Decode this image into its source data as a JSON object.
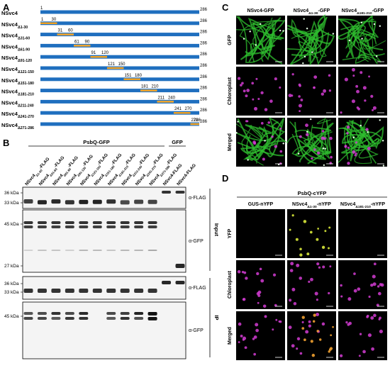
{
  "panels": {
    "A": {
      "letter": "A",
      "full_length": 286,
      "constructs": [
        {
          "name": "NSvc4",
          "sub": "",
          "deletion": null
        },
        {
          "name": "NSvc4",
          "sub": "Δ1-30",
          "deletion": [
            1,
            30
          ]
        },
        {
          "name": "NSvc4",
          "sub": "Δ31-60",
          "deletion": [
            31,
            60
          ]
        },
        {
          "name": "NSvc4",
          "sub": "Δ61-90",
          "deletion": [
            61,
            90
          ]
        },
        {
          "name": "NSvc4",
          "sub": "Δ91-120",
          "deletion": [
            91,
            120
          ]
        },
        {
          "name": "NSvc4",
          "sub": "Δ121-150",
          "deletion": [
            121,
            150
          ]
        },
        {
          "name": "NSvc4",
          "sub": "Δ151-180",
          "deletion": [
            151,
            180
          ]
        },
        {
          "name": "NSvc4",
          "sub": "Δ181-210",
          "deletion": [
            181,
            210
          ]
        },
        {
          "name": "NSvc4",
          "sub": "Δ211-240",
          "deletion": [
            211,
            240
          ]
        },
        {
          "name": "NSvc4",
          "sub": "Δ241-270",
          "deletion": [
            241,
            270
          ]
        },
        {
          "name": "NSvc4",
          "sub": "Δ271-286",
          "deletion": [
            271,
            286
          ]
        }
      ],
      "colors": {
        "full": "#1f6fbf",
        "deleted": "#f0a020"
      }
    },
    "B": {
      "letter": "B",
      "group_labels": {
        "psbq": "PsbQ-GFP",
        "gfp": "GFP"
      },
      "lanes": [
        {
          "name": "NSvc4",
          "sub": "Δ1-30",
          "suffix": "-FLAG"
        },
        {
          "name": "NSvc4",
          "sub": "Δ31-60",
          "suffix": "-FLAG"
        },
        {
          "name": "NSvc4",
          "sub": "Δ61-90",
          "suffix": "-FLAG"
        },
        {
          "name": "NSvc4",
          "sub": "Δ91-120",
          "suffix": "-FLAG"
        },
        {
          "name": "NSvc4",
          "sub": "Δ121-150",
          "suffix": "-FLAG"
        },
        {
          "name": "NSvc4",
          "sub": "Δ151-180",
          "suffix": "-FLAG"
        },
        {
          "name": "NSvc4",
          "sub": "Δ181-210",
          "suffix": "-FLAG"
        },
        {
          "name": "NSvc4",
          "sub": "Δ211-240",
          "suffix": "-FLAG"
        },
        {
          "name": "NSvc4",
          "sub": "Δ241-270",
          "suffix": "-FLAG"
        },
        {
          "name": "NSvc4",
          "sub": "Δ271-286",
          "suffix": "-FLAG"
        },
        {
          "name": "NSvc4-FLAG",
          "sub": "",
          "suffix": ""
        },
        {
          "name": "NSvc4-FLAG",
          "sub": "",
          "suffix": ""
        }
      ],
      "markers": {
        "m36": "36 kDa",
        "m33": "33 kDa",
        "m45": "45 kDa",
        "m27": "27 kDa"
      },
      "antibodies": {
        "flag": "α-FLAG",
        "gfp": "α-GFP"
      },
      "sections": {
        "input": "Input",
        "ip": "IP"
      }
    },
    "C": {
      "letter": "C",
      "columns": [
        {
          "name": "NSvc4-GFP",
          "sub": "",
          "suffix": ""
        },
        {
          "name": "NSvc4",
          "sub": "Δ1-30",
          "suffix": "-GFP"
        },
        {
          "name": "NSvc4",
          "sub": "Δ181-210",
          "suffix": "-GFP"
        }
      ],
      "rows": [
        "GFP",
        "Chloroplast",
        "Merged"
      ]
    },
    "D": {
      "letter": "D",
      "top_label": "PsbQ-cYFP",
      "columns": [
        {
          "name": "GUS-nYFP",
          "sub": "",
          "suffix": ""
        },
        {
          "name": "NSvc4",
          "sub": "Δ1-30",
          "suffix": "-nYFP"
        },
        {
          "name": "NSvc4",
          "sub": "Δ181-210",
          "suffix": "-nYFP"
        }
      ],
      "rows": [
        "YFP",
        "Chloroplast",
        "Merged"
      ]
    }
  }
}
